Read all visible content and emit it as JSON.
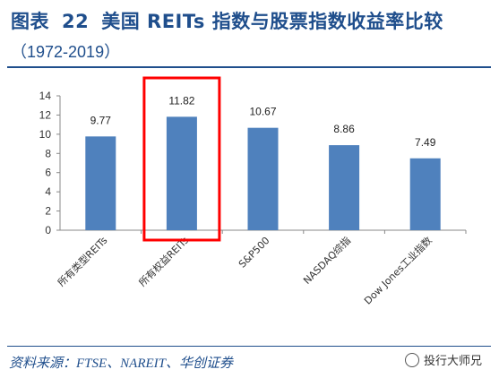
{
  "header": {
    "figure_label": "图表",
    "figure_number": "22",
    "title": "美国 REITs 指数与股票指数收益率比较",
    "subtitle": "（1972-2019）"
  },
  "source": "资料来源：FTSE、NAREIT、华创证券",
  "watermark": "投行大师兄",
  "colors": {
    "bar": "#4f81bd",
    "highlight": "#ff0000",
    "title": "#1f4e8c"
  },
  "chart_data": {
    "type": "bar",
    "categories": [
      "所有类型REITs",
      "所有权益REITs",
      "S&P500",
      "NASDAQ综指",
      "Dow Jones工业指数"
    ],
    "values": [
      9.77,
      11.82,
      10.67,
      8.86,
      7.49
    ],
    "value_labels": [
      "9.77",
      "11.82",
      "10.67",
      "8.86",
      "7.49"
    ],
    "ylim": [
      0,
      14
    ],
    "yticks": [
      0,
      2,
      4,
      6,
      8,
      10,
      12,
      14
    ],
    "highlight_index": 1,
    "grid": false
  }
}
